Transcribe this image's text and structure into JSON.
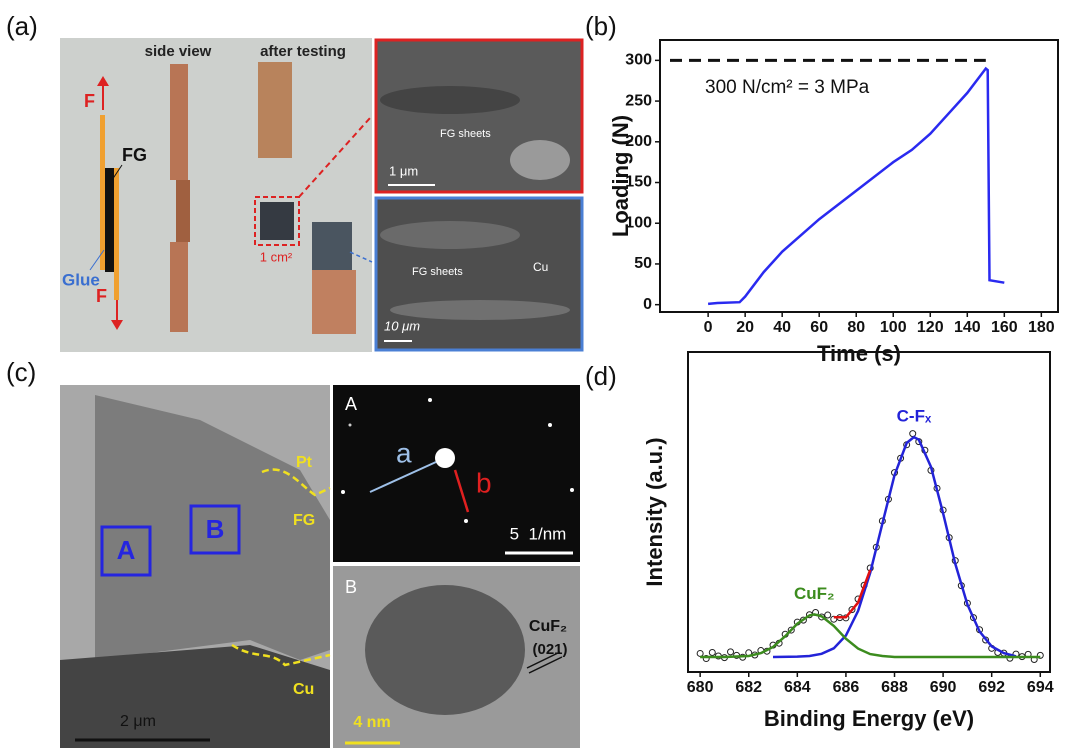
{
  "panel_a": {
    "label": "(a)",
    "side_view": "side view",
    "after_testing": "after testing",
    "force_top": "F",
    "fg": "FG",
    "glue": "Glue",
    "force_bottom": "F",
    "area": "1 cm²",
    "sem_top": {
      "sheets": "FG sheets",
      "scale": "1 μm"
    },
    "sem_bottom": {
      "sheets": "FG sheets",
      "cu": "Cu",
      "scale": "10 μm"
    }
  },
  "panel_c": {
    "label": "(c)",
    "region_a": "A",
    "region_b": "B",
    "pt": "Pt",
    "fg": "FG",
    "cu": "Cu",
    "scale": "2 μm",
    "inset_a": {
      "label": "A",
      "a": "a",
      "b": "b",
      "scale": "5  1/nm"
    },
    "inset_b": {
      "label": "B",
      "phase": "CuF₂",
      "plane": "(021)",
      "scale": "4 nm"
    }
  },
  "chart_data": [
    {
      "type": "line",
      "panel_label": "(b)",
      "xlabel": "Time (s)",
      "ylabel": "Loading (N)",
      "annotation": "300 N/cm² = 3 MPa",
      "reference_line": 300,
      "xlim": [
        -26,
        189
      ],
      "xticks": [
        0,
        20,
        40,
        60,
        80,
        100,
        120,
        140,
        160,
        180
      ],
      "ylim": [
        -9,
        325
      ],
      "yticks": [
        0,
        50,
        100,
        150,
        200,
        250,
        300
      ],
      "series": [
        {
          "color": "#2a2af0",
          "x": [
            0,
            5,
            17,
            20,
            30,
            40,
            50,
            60,
            80,
            100,
            110,
            120,
            130,
            140,
            150,
            151,
            152,
            160
          ],
          "values": [
            1,
            2,
            3,
            10,
            40,
            65,
            85,
            105,
            140,
            175,
            190,
            210,
            235,
            260,
            290,
            288,
            30,
            27
          ]
        }
      ]
    },
    {
      "type": "line",
      "panel_label": "(d)",
      "xlabel": "Binding Energy (eV)",
      "ylabel": "Intensity (a.u.)",
      "xlim": [
        679.5,
        694.4
      ],
      "xticks": [
        680,
        682,
        684,
        686,
        688,
        690,
        692,
        694
      ],
      "ylim": [
        0,
        100
      ],
      "points": {
        "x": [
          680,
          680.25,
          680.5,
          680.75,
          681,
          681.25,
          681.5,
          681.75,
          682,
          682.25,
          682.5,
          682.75,
          683,
          683.25,
          683.5,
          683.75,
          684,
          684.25,
          684.5,
          684.75,
          685,
          685.25,
          685.5,
          685.75,
          686,
          686.25,
          686.5,
          686.75,
          687,
          687.25,
          687.5,
          687.75,
          688,
          688.25,
          688.5,
          688.75,
          689,
          689.25,
          689.5,
          689.75,
          690,
          690.25,
          690.5,
          690.75,
          691,
          691.25,
          691.5,
          691.75,
          692,
          692.25,
          692.5,
          692.75,
          693,
          693.25,
          693.5,
          693.75,
          694
        ],
        "values": [
          5.8,
          4.2,
          6.1,
          5.0,
          4.5,
          6.3,
          5.2,
          4.6,
          6.0,
          5.3,
          6.7,
          6.5,
          8.4,
          9.0,
          11.8,
          13.1,
          15.6,
          16.2,
          17.9,
          18.6,
          17.2,
          17.8,
          16.5,
          17.0,
          16.9,
          19.5,
          22.8,
          27.1,
          32.5,
          39.0,
          47.2,
          54.0,
          62.3,
          66.8,
          71.0,
          74.5,
          72.0,
          69.3,
          63.0,
          57.4,
          50.6,
          42.0,
          34.8,
          27.0,
          21.5,
          17.0,
          13.2,
          10.0,
          7.4,
          6.1,
          5.9,
          4.3,
          5.6,
          4.8,
          5.5,
          3.9,
          5.2
        ]
      },
      "series": [
        {
          "name": "C-Fₓ",
          "color": "#2323d8",
          "x": [
            683,
            684,
            684.5,
            685,
            685.5,
            686,
            686.5,
            687,
            687.5,
            688,
            688.5,
            688.8,
            689,
            689.5,
            690,
            690.5,
            691,
            691.5,
            692,
            692.5,
            693
          ],
          "values": [
            4.7,
            4.8,
            5.0,
            5.7,
            7.4,
            11.4,
            19.1,
            31.0,
            46.4,
            61.5,
            71.6,
            73.4,
            72.6,
            64.1,
            49.6,
            33.9,
            21.1,
            12.7,
            8.0,
            5.9,
            4.9
          ]
        },
        {
          "name": "CuF₂",
          "color": "#3c8c1e",
          "x": [
            680,
            681,
            682,
            682.5,
            683,
            683.5,
            684,
            684.5,
            684.7,
            685,
            685.5,
            686,
            686.5,
            687,
            687.5,
            688,
            694
          ],
          "values": [
            4.7,
            4.7,
            5.0,
            5.9,
            7.8,
            11.2,
            15.1,
            17.7,
            18.0,
            17.4,
            14.4,
            10.4,
            7.3,
            5.6,
            5.0,
            4.7,
            4.7
          ]
        },
        {
          "color": "#e01010",
          "x": [
            685.5,
            686,
            686.5,
            687
          ],
          "values": [
            17.1,
            17.1,
            21.7,
            31.9
          ]
        }
      ]
    }
  ]
}
